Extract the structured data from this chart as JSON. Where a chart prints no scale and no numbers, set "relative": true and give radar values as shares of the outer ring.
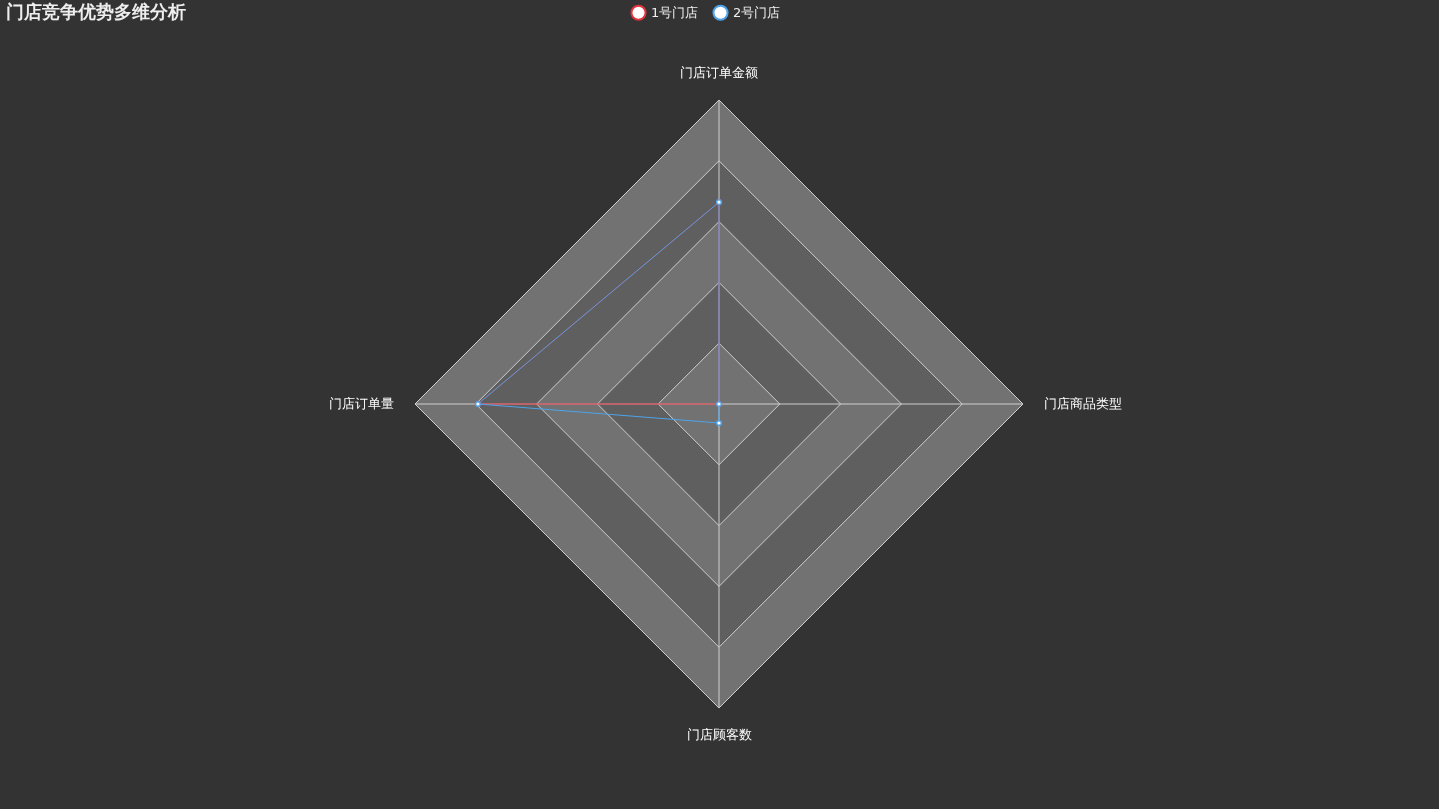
{
  "chart_data": {
    "type": "radar",
    "title": "门店竞争优势多维分析",
    "categories": [
      "门店订单金额",
      "门店商品类型",
      "门店顾客数",
      "门店订单量"
    ],
    "relative": true,
    "legend": "top",
    "marker": "circle",
    "series": [
      {
        "name": "1号门店",
        "color": "#e0333c",
        "values": [
          0.664,
          0,
          0,
          0.793
        ]
      },
      {
        "name": "2号门店",
        "color": "#4fa3e8",
        "values": [
          0.664,
          0,
          0.0625,
          0.793
        ]
      }
    ]
  }
}
